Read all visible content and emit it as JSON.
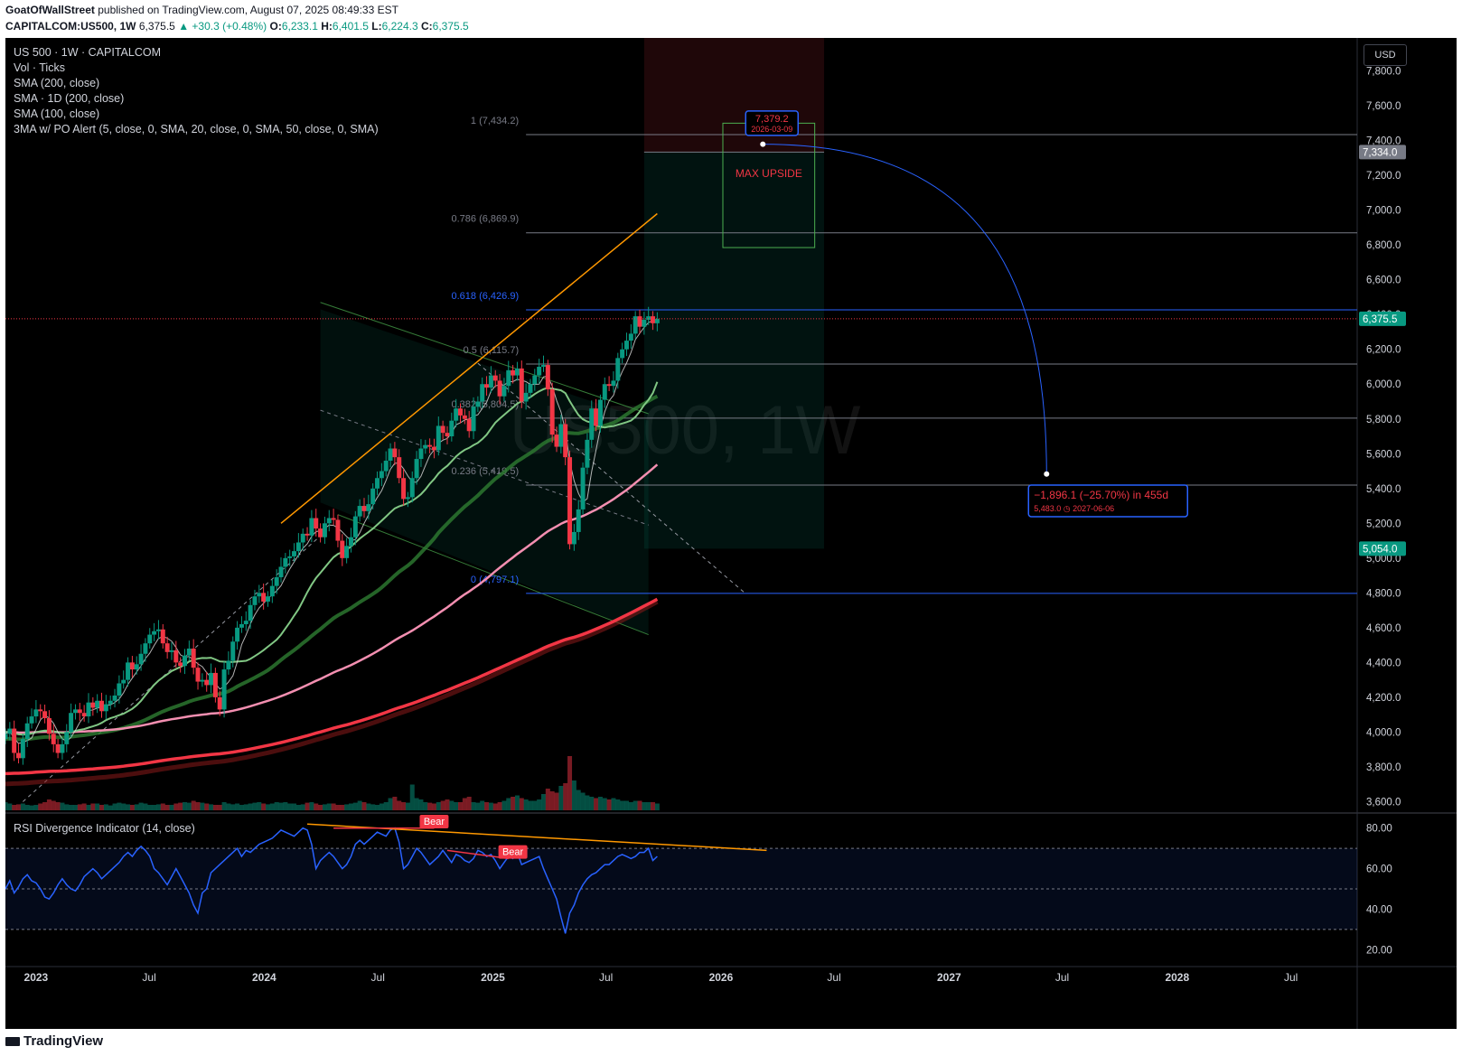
{
  "header": {
    "line1_user": "GoatOfWallStreet",
    "line1_rest": " published on TradingView.com, August 07, 2025 08:49:33 EST",
    "symbol": "CAPITALCOM:US500, 1W",
    "last": "6,375.5",
    "change": "▲ +30.3 (+0.48%)",
    "o_label": "O:",
    "o": "6,233.1",
    "h_label": "H:",
    "h": "6,401.5",
    "l_label": "L:",
    "l": "6,224.3",
    "c_label": "C:",
    "c": "6,375.5"
  },
  "legend": [
    "US 500 · 1W · CAPITALCOM",
    "Vol · Ticks",
    "SMA (200, close)",
    "SMA · 1D (200, close)",
    "SMA (100, close)",
    "3MA w/ PO Alert (5, close, 0, SMA, 20, close, 0, SMA, 50, close, 0, SMA)"
  ],
  "watermark": "US500, 1W",
  "currency": "USD",
  "rsi_title": "RSI Divergence Indicator (14, close)",
  "footer": "TradingView",
  "colors": {
    "bg": "#000000",
    "up": "#089981",
    "down": "#f23645",
    "sma_light": "#81c784",
    "sma_dark": "#2e7d32",
    "sma_pink": "#f48fb1",
    "sma_red": "#f23645",
    "orange": "#ff9800",
    "rsi": "#2962ff",
    "blue_box": "#2962ff"
  },
  "chart_data": {
    "type": "candlestick",
    "timeframe": "1W",
    "y_axis_ticks": [
      "7,800.0",
      "7,600.0",
      "7,400.0",
      "7,200.0",
      "7,000.0",
      "6,800.0",
      "6,600.0",
      "6,400.0",
      "6,200.0",
      "6,000.0",
      "5,800.0",
      "5,600.0",
      "5,400.0",
      "5,200.0",
      "5,000.0",
      "4,800.0",
      "4,600.0",
      "4,400.0",
      "4,200.0",
      "4,000.0",
      "3,800.0",
      "3,600.0"
    ],
    "y_range": [
      3540,
      7990
    ],
    "x_axis_ticks": [
      "2023",
      "Jul",
      "2024",
      "Jul",
      "2025",
      "Jul",
      "2026",
      "Jul",
      "2027",
      "Jul",
      "2028",
      "Jul"
    ],
    "x_range": [
      "2022-11-13",
      "2028-10-15"
    ],
    "price_labels": [
      {
        "text": "7,334.0",
        "value": 7334,
        "color": "#787b86"
      },
      {
        "text": "6,375.5",
        "value": 6375.5,
        "color": "#089981"
      },
      {
        "text": "5,054.0",
        "value": 5054,
        "color": "#089981"
      }
    ],
    "fib_levels": [
      {
        "label": "1 (7,434.2)",
        "value": 7434.2
      },
      {
        "label": "0.786 (6,869.9)",
        "value": 6869.9
      },
      {
        "label": "0.618 (6,426.9)",
        "value": 6426.9
      },
      {
        "label": "0.5 (6,115.7)",
        "value": 6115.7
      },
      {
        "label": "0.382 (5,804.5)",
        "value": 5804.5
      },
      {
        "label": "0.236 (5,419.5)",
        "value": 5419.5
      },
      {
        "label": "0 (4,797.1)",
        "value": 4797.1
      }
    ],
    "annotations": {
      "target_price": "7,379.2",
      "target_date": "2026-03-09",
      "max_upside": "MAX UPSIDE",
      "projection_change": "−1,896.1 (−25.70%) in 455d",
      "projection_price": "5,483.0",
      "projection_date": "2027-06-06",
      "rsi_bear_labels": [
        "Bear",
        "Bear"
      ]
    },
    "weekly_close": [
      3990,
      4020,
      3880,
      3850,
      3960,
      4050,
      4090,
      4130,
      4120,
      4080,
      3990,
      3930,
      3880,
      3930,
      4000,
      4110,
      4130,
      4110,
      4090,
      4170,
      4140,
      4180,
      4120,
      4160,
      4180,
      4210,
      4280,
      4300,
      4400,
      4360,
      4390,
      4450,
      4510,
      4560,
      4580,
      4590,
      4510,
      4460,
      4470,
      4400,
      4380,
      4440,
      4480,
      4370,
      4290,
      4300,
      4270,
      4340,
      4200,
      4130,
      4360,
      4410,
      4520,
      4600,
      4620,
      4640,
      4730,
      4780,
      4800,
      4750,
      4780,
      4840,
      4890,
      4950,
      5000,
      5010,
      5040,
      5090,
      5140,
      5130,
      5230,
      5170,
      5120,
      5200,
      5230,
      5220,
      5100,
      5000,
      5070,
      5120,
      5240,
      5300,
      5270,
      5310,
      5400,
      5460,
      5500,
      5560,
      5630,
      5580,
      5460,
      5340,
      5350,
      5460,
      5570,
      5630,
      5650,
      5640,
      5620,
      5760,
      5720,
      5700,
      5790,
      5860,
      5820,
      5800,
      5730,
      5870,
      5900,
      6000,
      5980,
      6050,
      6020,
      5930,
      5990,
      6080,
      6050,
      6090,
      5900,
      5950,
      6000,
      6050,
      6100,
      6110,
      5970,
      5710,
      5640,
      5770,
      5580,
      5080,
      5150,
      5280,
      5520,
      5680,
      5860,
      5760,
      5910,
      6000,
      5990,
      6020,
      6150,
      6200,
      6250,
      6290,
      6390,
      6330,
      6370,
      6390,
      6350,
      6375.5
    ],
    "weekly_volume_relative": [
      0.3,
      0.25,
      0.2,
      0.22,
      0.25,
      0.2,
      0.18,
      0.2,
      0.25,
      0.3,
      0.4,
      0.35,
      0.3,
      0.28,
      0.22,
      0.2,
      0.2,
      0.22,
      0.25,
      0.2,
      0.25,
      0.25,
      0.2,
      0.22,
      0.18,
      0.25,
      0.28,
      0.25,
      0.22,
      0.2,
      0.22,
      0.28,
      0.25,
      0.2,
      0.2,
      0.22,
      0.25,
      0.2,
      0.2,
      0.25,
      0.28,
      0.3,
      0.28,
      0.35,
      0.3,
      0.28,
      0.25,
      0.22,
      0.2,
      0.2,
      0.3,
      0.25,
      0.22,
      0.25,
      0.2,
      0.22,
      0.25,
      0.28,
      0.3,
      0.25,
      0.22,
      0.25,
      0.3,
      0.28,
      0.3,
      0.25,
      0.25,
      0.2,
      0.22,
      0.28,
      0.3,
      0.25,
      0.2,
      0.22,
      0.25,
      0.25,
      0.2,
      0.2,
      0.22,
      0.25,
      0.28,
      0.35,
      0.3,
      0.25,
      0.22,
      0.2,
      0.25,
      0.3,
      0.45,
      0.5,
      0.35,
      0.3,
      0.28,
      0.95,
      0.45,
      0.4,
      0.3,
      0.28,
      0.25,
      0.3,
      0.35,
      0.4,
      0.35,
      0.3,
      0.3,
      0.45,
      0.5,
      0.3,
      0.28,
      0.35,
      0.3,
      0.28,
      0.25,
      0.3,
      0.35,
      0.45,
      0.5,
      0.55,
      0.45,
      0.4,
      0.35,
      0.35,
      0.4,
      0.6,
      0.8,
      0.7,
      0.65,
      0.9,
      1.0,
      2.0,
      1.1,
      0.75,
      0.65,
      0.55,
      0.5,
      0.45,
      0.5,
      0.45,
      0.4,
      0.45,
      0.4,
      0.35,
      0.35,
      0.3,
      0.35,
      0.35,
      0.3,
      0.3,
      0.3,
      0.25
    ],
    "rsi": {
      "y_ticks": [
        "80.00",
        "60.00",
        "40.00",
        "20.00"
      ],
      "y_range": [
        13,
        87
      ],
      "band": [
        30,
        70
      ],
      "values": [
        50,
        54,
        48,
        51,
        55,
        57,
        54,
        53,
        50,
        46,
        45,
        48,
        52,
        55,
        52,
        50,
        49,
        52,
        56,
        58,
        60,
        58,
        55,
        57,
        59,
        61,
        63,
        66,
        68,
        66,
        69,
        71,
        69,
        66,
        60,
        58,
        55,
        52,
        56,
        60,
        56,
        52,
        48,
        42,
        38,
        48,
        50,
        58,
        60,
        62,
        64,
        66,
        68,
        70,
        66,
        69,
        68,
        70,
        72,
        73,
        74,
        75,
        77,
        79,
        78,
        77,
        76,
        78,
        80,
        79,
        72,
        60,
        64,
        66,
        68,
        66,
        63,
        60,
        62,
        66,
        72,
        74,
        72,
        74,
        76,
        78,
        77,
        76,
        79,
        80,
        73,
        60,
        62,
        66,
        70,
        68,
        65,
        62,
        64,
        66,
        69,
        66,
        63,
        67,
        66,
        64,
        63,
        65,
        69,
        68,
        66,
        67,
        64,
        60,
        63,
        66,
        65,
        68,
        62,
        63,
        64,
        65,
        66,
        60,
        55,
        50,
        45,
        36,
        28,
        38,
        42,
        48,
        52,
        55,
        57,
        58,
        60,
        62,
        62,
        64,
        66,
        67,
        66,
        65,
        66,
        68,
        68,
        70,
        64,
        66
      ]
    },
    "projection_end_price": 5483.0,
    "target_start_price": 7379.2
  }
}
